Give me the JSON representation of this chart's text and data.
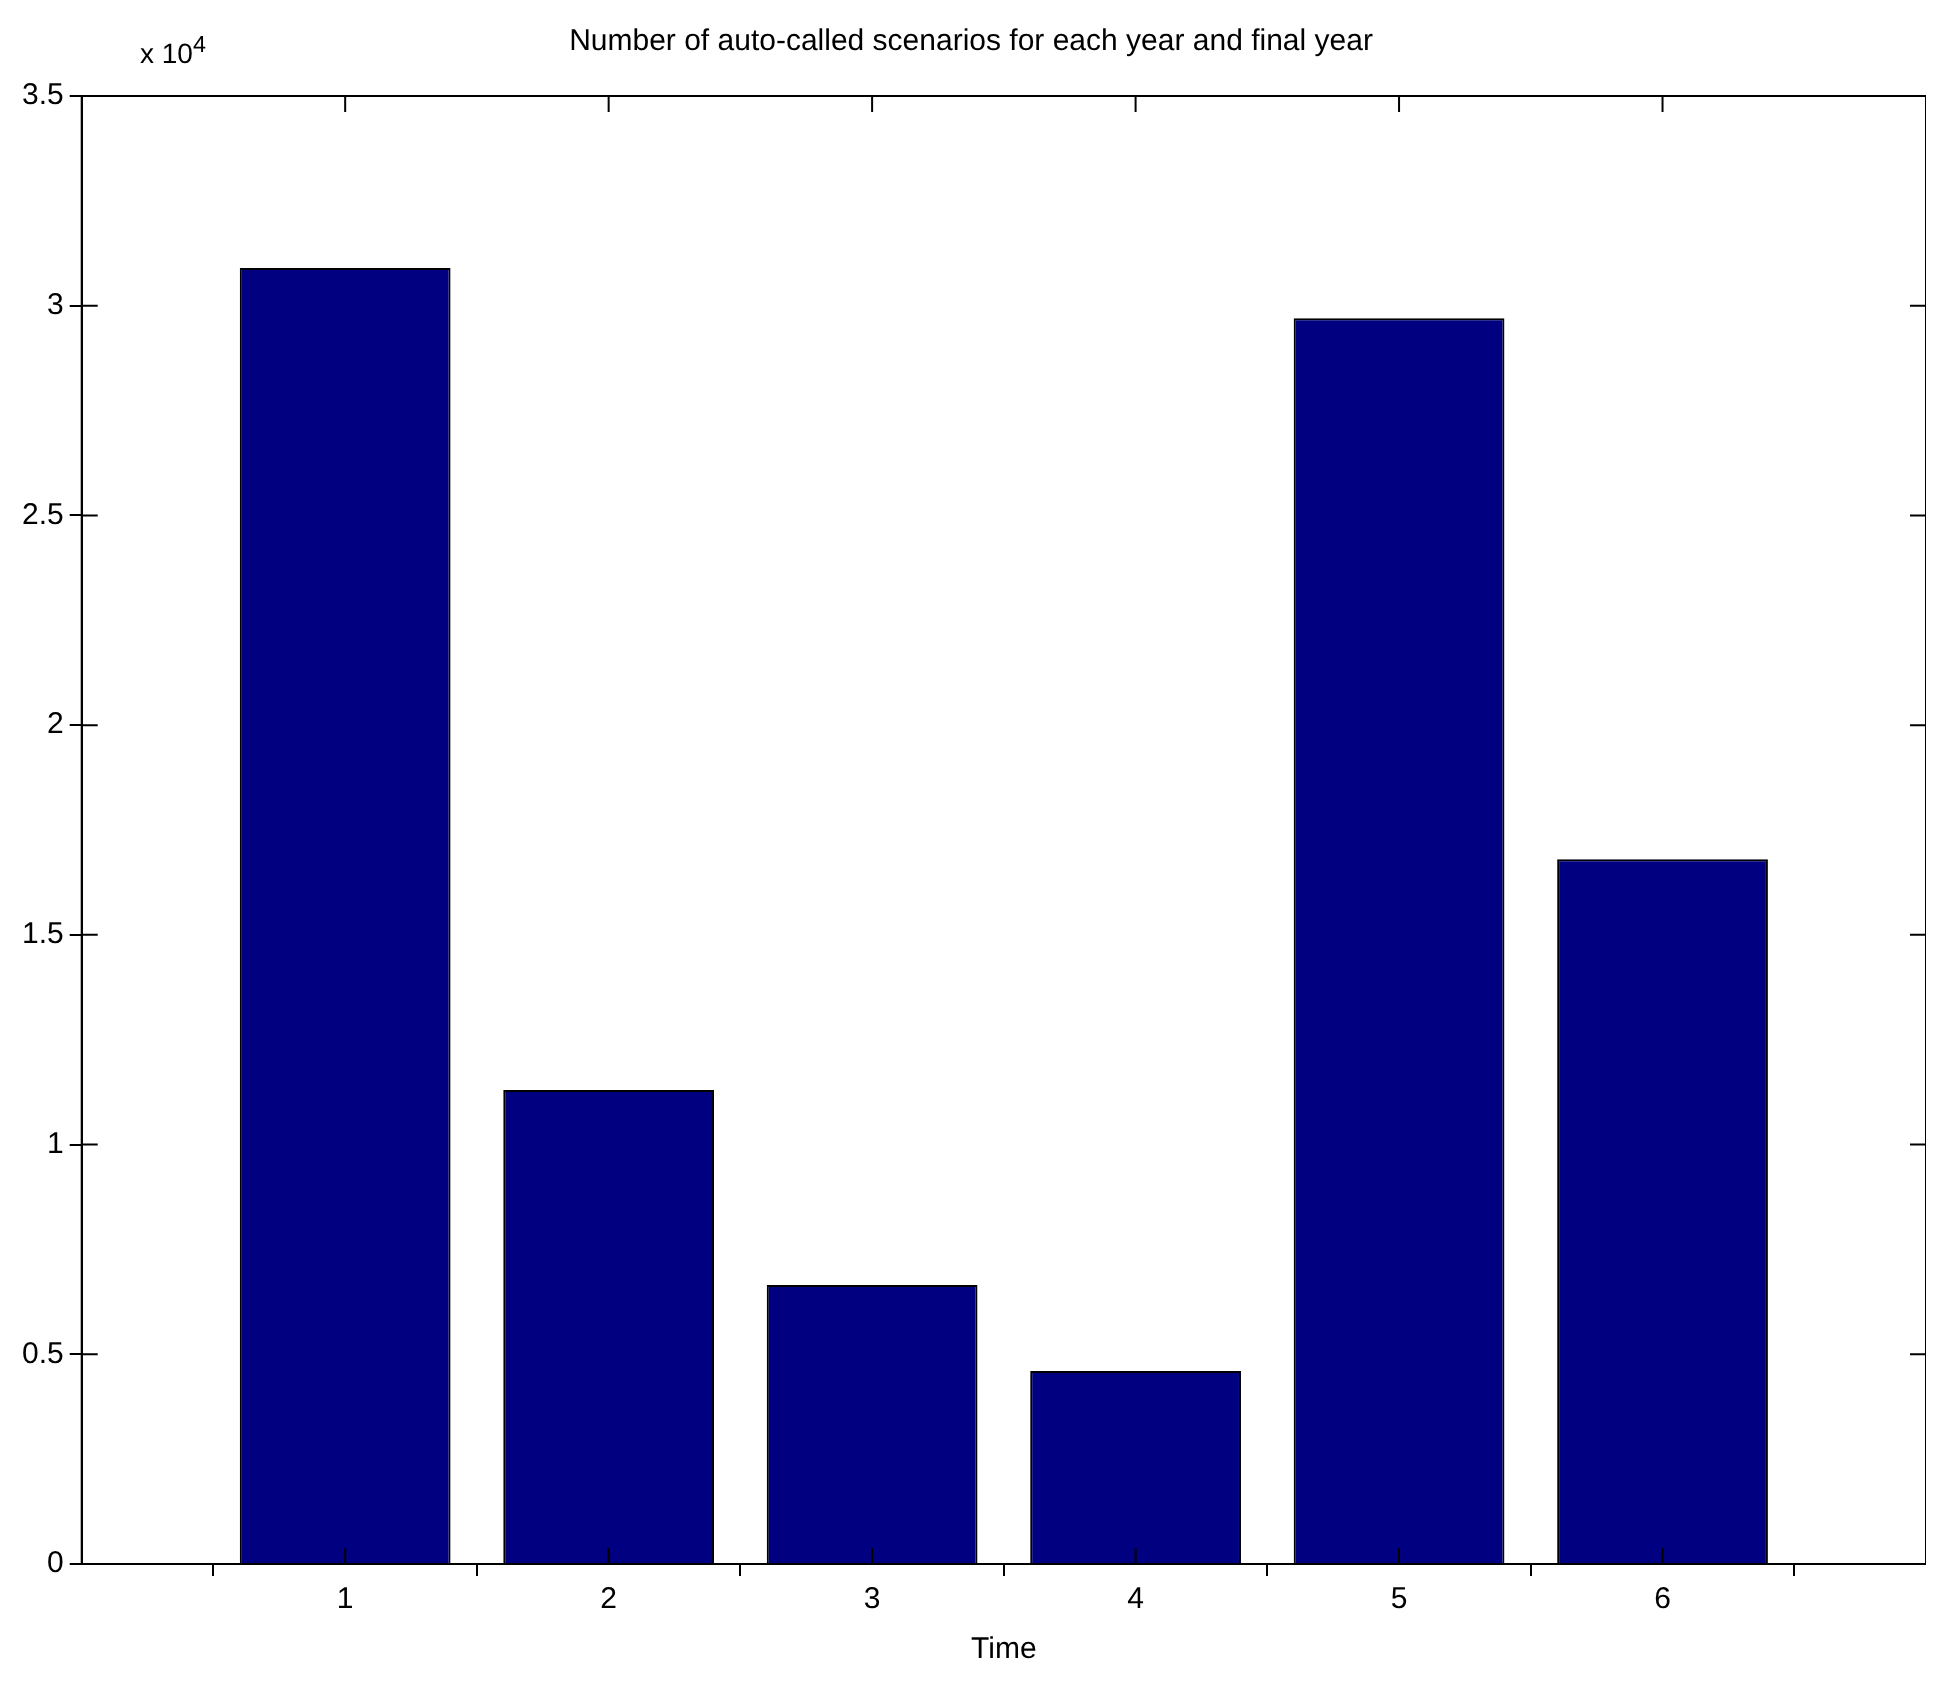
{
  "chart_data": {
    "type": "bar",
    "title": "Number of auto-called scenarios for each year and final year",
    "xlabel": "Time",
    "x": [
      1,
      2,
      3,
      4,
      5,
      6
    ],
    "xlim": [
      0,
      7
    ],
    "xticks": [
      1,
      2,
      3,
      4,
      5,
      6
    ],
    "values": [
      3.09,
      1.13,
      0.665,
      0.46,
      2.97,
      1.68
    ],
    "color": "#000080",
    "ylim": [
      0,
      3.5
    ],
    "yticks": [
      0,
      0.5,
      1,
      1.5,
      2,
      2.5,
      3,
      3.5
    ],
    "grid": false,
    "annotations": [
      "x 10$^{4}$"
    ]
  }
}
